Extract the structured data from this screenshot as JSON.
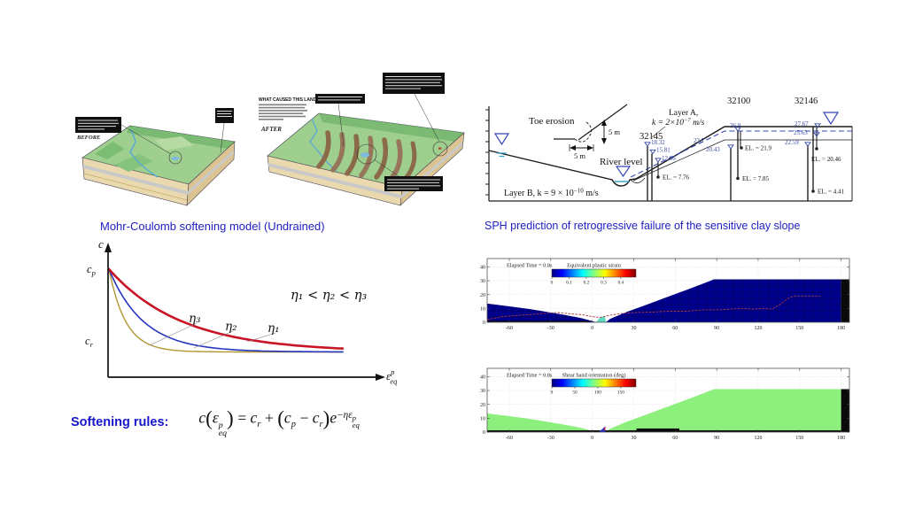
{
  "titles": {
    "mohr": "Mohr-Coulomb softening model (Undrained)",
    "sph": "SPH prediction of retrogressive failure of the sensitive clay slope",
    "softening_rules": "Softening rules:"
  },
  "colors": {
    "title_blue": "#2121c2",
    "curve_red": "#c81426",
    "curve_blue": "#2636c0",
    "curve_yellow": "#b1952f",
    "terrain_navy": "#00008f",
    "terrain_green": "#8df07d",
    "piezo_blue": "#3848a8"
  },
  "illustrations": {
    "before": {
      "label": "BEFORE"
    },
    "after": {
      "label": "AFTER",
      "heading": "WHAT CAUSED THIS LANDSLIDE?"
    }
  },
  "section": {
    "toe_erosion": "Toe erosion",
    "dim_vertical": "5 m",
    "dim_horizontal": "5 m",
    "river_level": "River level",
    "layer_a_line1": "Layer A,",
    "layer_a_k1": "k = 2×10",
    "layer_a_k_exp": "−7",
    "layer_a_k2": " m/s",
    "layer_b_1": "Layer B, k = 9 × 10",
    "layer_b_exp": "−10",
    "layer_b_2": " m/s",
    "boreholes": [
      {
        "id": "32145",
        "r1": "18.32",
        "r2": "15.81",
        "r3": "12.96",
        "el1": "EL. = 7.76"
      },
      {
        "id": "32100",
        "r1": "26.9",
        "r2": "23.7",
        "r3": "20.43",
        "el1": "EL. = 21.9",
        "el2": "EL. = 7.85"
      },
      {
        "id": "32146",
        "r1": "27.67",
        "r2": "25.63",
        "r3": "22.59",
        "el1": "EL. = 20.46",
        "el2": "EL. = 4.41"
      }
    ]
  },
  "equation": {
    "f": "c",
    "open": "(",
    "eps": "ε",
    "sup": "p",
    "sub": "eq",
    "close": ")",
    "equals": "=",
    "c1": "c",
    "s1": "r",
    "plus": "+",
    "open2": "(",
    "c2": "c",
    "s2": "p",
    "minus": "−",
    "c3": "c",
    "s3": "r",
    "close2": ")",
    "e": "e",
    "exp_head": "−η",
    "exp_eps": "ε",
    "exp_sup": "p",
    "exp_sub": "eq"
  },
  "chart_data": [
    {
      "id": "softening_model",
      "type": "line",
      "title": "Mohr-Coulomb softening model (Undrained)",
      "x_label": {
        "base": "ε",
        "sup": "p",
        "sub": "eq"
      },
      "y_label": "c",
      "y_peak": {
        "base": "c",
        "sub": "p"
      },
      "y_residual": {
        "base": "c",
        "sub": "r"
      },
      "annotation": "η₁ < η₂ < η₃",
      "series": [
        {
          "name": "η₁",
          "color": "#c81426",
          "decay": 3.2,
          "width": 2.6
        },
        {
          "name": "η₂",
          "color": "#2636c0",
          "decay": 6.8,
          "width": 1.6
        },
        {
          "name": "η₃",
          "color": "#b1952f",
          "decay": 14,
          "width": 1.4
        }
      ],
      "note": "cohesion c decays exponentially from peak c_p to residual c_r with equivalent plastic strain; larger η gives faster softening"
    },
    {
      "id": "sph_plastic_strain",
      "type": "area",
      "elapsed": "Elapsed Time = 0.8s",
      "colorbar": {
        "label": "Equivalent plastic strain",
        "ticks": [
          "0",
          "0.1",
          "0.2",
          "0.3",
          "0.4"
        ]
      },
      "x_ticks": [
        -60,
        -30,
        0,
        30,
        60,
        90,
        120,
        150,
        180
      ],
      "y_ticks": [
        0,
        10,
        20,
        30,
        40
      ],
      "xlim": [
        -76,
        186
      ],
      "ylim": [
        0,
        46
      ],
      "terrain_color": "#00008f",
      "terrain_profile": [
        [
          -76,
          13.5
        ],
        [
          -60,
          11.5
        ],
        [
          -45,
          9.5
        ],
        [
          -30,
          7
        ],
        [
          -18,
          5
        ],
        [
          -8,
          3
        ],
        [
          -2,
          1.5
        ],
        [
          1,
          0.6
        ],
        [
          3,
          0.2
        ],
        [
          10,
          0.2
        ],
        [
          13,
          2.5
        ],
        [
          25,
          7.5
        ],
        [
          40,
          13
        ],
        [
          55,
          18.5
        ],
        [
          70,
          24
        ],
        [
          83,
          29
        ],
        [
          88,
          31
        ],
        [
          180,
          31
        ]
      ],
      "piezometric_line": [
        [
          -76,
          2
        ],
        [
          -65,
          4
        ],
        [
          -55,
          5
        ],
        [
          -45,
          5.5
        ],
        [
          -35,
          6.5
        ],
        [
          -25,
          7
        ],
        [
          -15,
          6
        ],
        [
          -7,
          5.5
        ],
        [
          0,
          4
        ],
        [
          6,
          3.5
        ],
        [
          12,
          5
        ],
        [
          22,
          6.5
        ],
        [
          32,
          7
        ],
        [
          45,
          7.5
        ],
        [
          55,
          8
        ],
        [
          68,
          8
        ],
        [
          80,
          9
        ],
        [
          92,
          9
        ],
        [
          100,
          9.5
        ],
        [
          108,
          10
        ],
        [
          116,
          9.5
        ],
        [
          124,
          10
        ],
        [
          130,
          9.5
        ],
        [
          136,
          13
        ],
        [
          141,
          17
        ],
        [
          146,
          19
        ],
        [
          165,
          19
        ]
      ]
    },
    {
      "id": "sph_shear_band",
      "type": "area",
      "elapsed": "Elapsed Time = 0.8s",
      "colorbar": {
        "label": "Shear band orientation (deg)",
        "ticks": [
          "0",
          "50",
          "100",
          "150"
        ]
      },
      "x_ticks": [
        -60,
        -30,
        0,
        30,
        60,
        90,
        120,
        150,
        180
      ],
      "y_ticks": [
        0,
        10,
        20,
        30,
        40
      ],
      "xlim": [
        -76,
        186
      ],
      "ylim": [
        0,
        46
      ],
      "terrain_color": "#8df07d",
      "terrain_profile": [
        [
          -76,
          13.5
        ],
        [
          -60,
          11.5
        ],
        [
          -45,
          9.5
        ],
        [
          -30,
          7
        ],
        [
          -18,
          5
        ],
        [
          -8,
          3
        ],
        [
          -2,
          1.5
        ],
        [
          1,
          0.6
        ],
        [
          3,
          0.2
        ],
        [
          10,
          0.2
        ],
        [
          13,
          2.5
        ],
        [
          25,
          7.5
        ],
        [
          40,
          13
        ],
        [
          55,
          18.5
        ],
        [
          70,
          24
        ],
        [
          83,
          29
        ],
        [
          88,
          31
        ],
        [
          180,
          31
        ]
      ]
    }
  ]
}
